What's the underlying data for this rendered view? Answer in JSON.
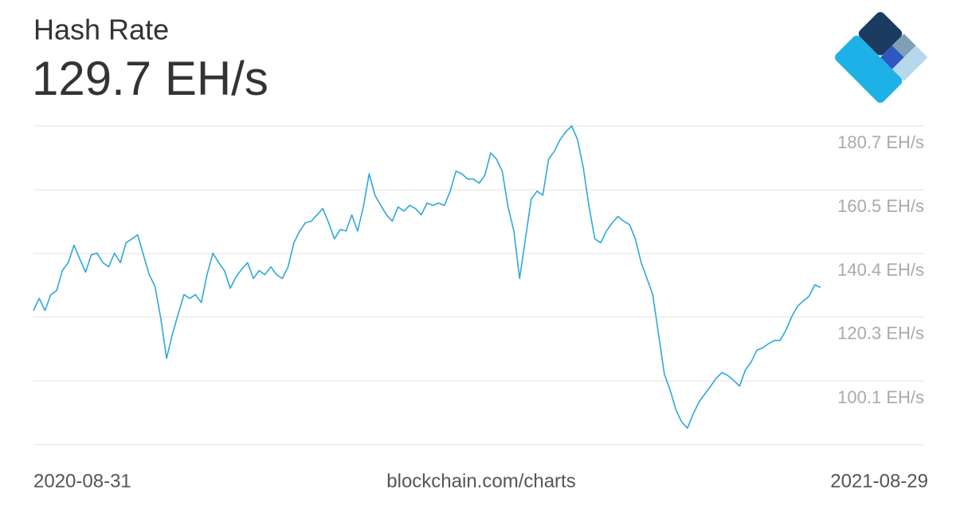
{
  "chart_data": {
    "type": "line",
    "title": "Hash Rate",
    "subtitle": "129.7 EH/s",
    "source": "blockchain.com/charts",
    "xlim": [
      "2020-08-31",
      "2021-08-29"
    ],
    "color": "#2ea8d9",
    "grid": true,
    "ylim": [
      80,
      180.7
    ],
    "yticks": [
      {
        "value": 180.7,
        "label": "180.7 EH/s"
      },
      {
        "value": 160.5,
        "label": "160.5 EH/s"
      },
      {
        "value": 140.4,
        "label": "140.4 EH/s"
      },
      {
        "value": 120.3,
        "label": "120.3 EH/s"
      },
      {
        "value": 100.1,
        "label": "100.1 EH/s"
      }
    ],
    "values": [
      122.4,
      126.2,
      122.4,
      127.4,
      128.7,
      135.0,
      137.5,
      143.0,
      138.7,
      134.5,
      140.0,
      140.5,
      137.5,
      136.2,
      140.5,
      137.5,
      143.8,
      145.0,
      146.3,
      140.0,
      133.7,
      130.0,
      119.9,
      107.3,
      114.9,
      121.2,
      127.4,
      126.2,
      127.4,
      124.9,
      133.7,
      140.5,
      137.5,
      135.0,
      129.4,
      133.0,
      135.5,
      137.5,
      132.5,
      135.0,
      133.7,
      136.2,
      133.7,
      132.5,
      136.2,
      143.8,
      147.5,
      150.1,
      150.6,
      152.6,
      154.6,
      150.1,
      145.0,
      148.0,
      147.5,
      152.6,
      147.5,
      155.1,
      165.6,
      158.8,
      155.6,
      152.6,
      150.6,
      155.1,
      153.8,
      155.6,
      154.6,
      152.6,
      156.3,
      155.6,
      156.3,
      155.6,
      160.1,
      166.4,
      165.6,
      163.9,
      163.9,
      162.6,
      165.1,
      172.2,
      170.2,
      166.4,
      155.1,
      147.5,
      132.5,
      145.0,
      157.6,
      160.1,
      158.8,
      170.2,
      172.7,
      176.4,
      178.9,
      180.7,
      176.4,
      167.6,
      155.1,
      145.0,
      143.8,
      147.5,
      150.1,
      152.1,
      150.6,
      149.5,
      145.0,
      137.5,
      132.5,
      127.4,
      114.9,
      102.3,
      97.3,
      91.0,
      87.2,
      85.2,
      89.8,
      93.5,
      96.0,
      98.5,
      101.1,
      102.8,
      101.8,
      100.3,
      98.5,
      103.6,
      106.1,
      109.9,
      110.6,
      111.9,
      112.9,
      112.9,
      116.1,
      120.4,
      123.7,
      125.4,
      126.9,
      130.5,
      129.7
    ]
  }
}
